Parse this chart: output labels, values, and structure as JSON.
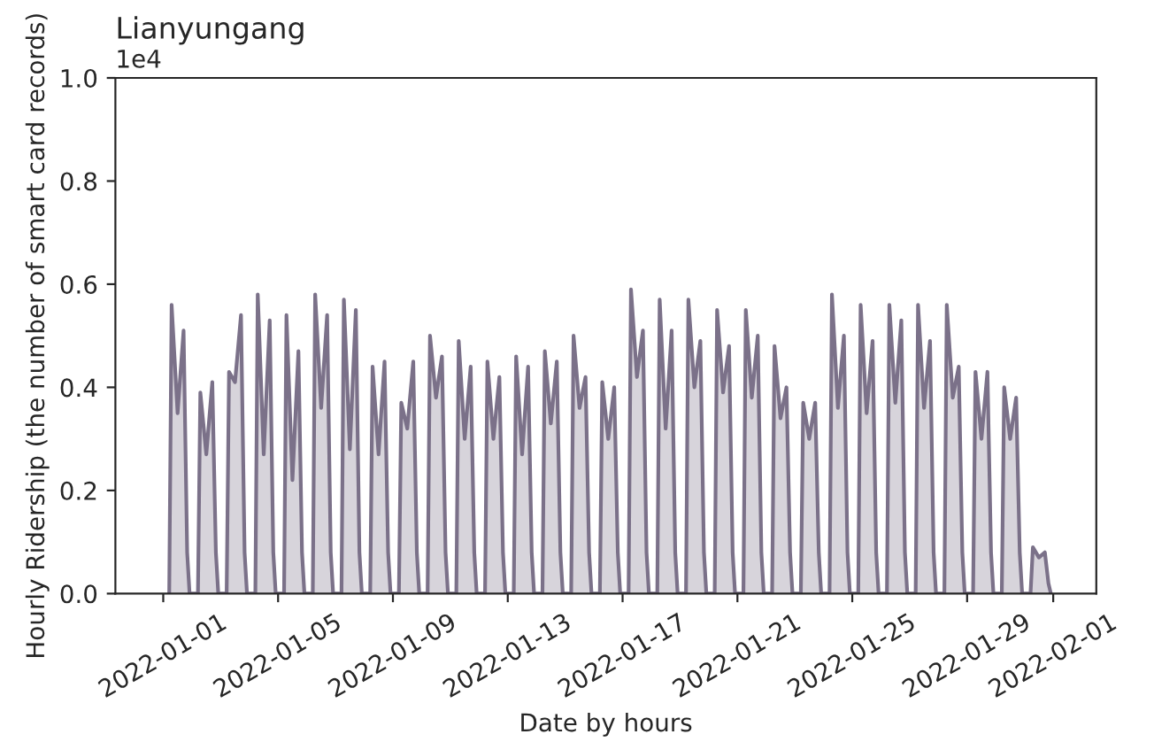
{
  "chart_data": {
    "type": "area",
    "title": "Lianyungang",
    "xlabel": "Date by hours",
    "ylabel": "Hourly Ridership (the number of smart card records)",
    "annotations": [
      "1e4"
    ],
    "xlim": [
      "2021-12-30T08:00",
      "2022-02-02T12:00"
    ],
    "xticks": [
      "2022-01-01",
      "2022-01-05",
      "2022-01-09",
      "2022-01-13",
      "2022-01-17",
      "2022-01-21",
      "2022-01-25",
      "2022-01-29",
      "2022-02-01"
    ],
    "ylim": [
      0,
      1.0
    ],
    "yticks": [
      {
        "value": 0,
        "label": "0.0"
      },
      0.2,
      0.4,
      0.6,
      0.8,
      {
        "value": 1.0,
        "label": "1.0"
      }
    ],
    "grid": false,
    "legend": false,
    "series": [
      {
        "color": "#7b7189",
        "x": [
          "2022-01-01T05:00",
          "2022-01-01T07:00",
          "2022-01-01T12:00",
          "2022-01-01T17:00",
          "2022-01-01T20:00",
          "2022-01-01T22:00",
          "2022-01-02T05:00",
          "2022-01-02T07:00",
          "2022-01-02T12:00",
          "2022-01-02T17:00",
          "2022-01-02T20:00",
          "2022-01-02T22:00",
          "2022-01-03T05:00",
          "2022-01-03T07:00",
          "2022-01-03T12:00",
          "2022-01-03T17:00",
          "2022-01-03T20:00",
          "2022-01-03T22:00",
          "2022-01-04T05:00",
          "2022-01-04T07:00",
          "2022-01-04T12:00",
          "2022-01-04T17:00",
          "2022-01-04T20:00",
          "2022-01-04T22:00",
          "2022-01-05T05:00",
          "2022-01-05T07:00",
          "2022-01-05T12:00",
          "2022-01-05T17:00",
          "2022-01-05T20:00",
          "2022-01-05T22:00",
          "2022-01-06T05:00",
          "2022-01-06T07:00",
          "2022-01-06T12:00",
          "2022-01-06T17:00",
          "2022-01-06T20:00",
          "2022-01-06T22:00",
          "2022-01-07T05:00",
          "2022-01-07T07:00",
          "2022-01-07T12:00",
          "2022-01-07T17:00",
          "2022-01-07T20:00",
          "2022-01-07T22:00",
          "2022-01-08T05:00",
          "2022-01-08T07:00",
          "2022-01-08T12:00",
          "2022-01-08T17:00",
          "2022-01-08T20:00",
          "2022-01-08T22:00",
          "2022-01-09T05:00",
          "2022-01-09T07:00",
          "2022-01-09T12:00",
          "2022-01-09T17:00",
          "2022-01-09T20:00",
          "2022-01-09T22:00",
          "2022-01-10T05:00",
          "2022-01-10T07:00",
          "2022-01-10T12:00",
          "2022-01-10T17:00",
          "2022-01-10T20:00",
          "2022-01-10T22:00",
          "2022-01-11T05:00",
          "2022-01-11T07:00",
          "2022-01-11T12:00",
          "2022-01-11T17:00",
          "2022-01-11T20:00",
          "2022-01-11T22:00",
          "2022-01-12T05:00",
          "2022-01-12T07:00",
          "2022-01-12T12:00",
          "2022-01-12T17:00",
          "2022-01-12T20:00",
          "2022-01-12T22:00",
          "2022-01-13T05:00",
          "2022-01-13T07:00",
          "2022-01-13T12:00",
          "2022-01-13T17:00",
          "2022-01-13T20:00",
          "2022-01-13T22:00",
          "2022-01-14T05:00",
          "2022-01-14T07:00",
          "2022-01-14T12:00",
          "2022-01-14T17:00",
          "2022-01-14T20:00",
          "2022-01-14T22:00",
          "2022-01-15T05:00",
          "2022-01-15T07:00",
          "2022-01-15T12:00",
          "2022-01-15T17:00",
          "2022-01-15T20:00",
          "2022-01-15T22:00",
          "2022-01-16T05:00",
          "2022-01-16T07:00",
          "2022-01-16T12:00",
          "2022-01-16T17:00",
          "2022-01-16T20:00",
          "2022-01-16T22:00",
          "2022-01-17T05:00",
          "2022-01-17T07:00",
          "2022-01-17T12:00",
          "2022-01-17T17:00",
          "2022-01-17T20:00",
          "2022-01-17T22:00",
          "2022-01-18T05:00",
          "2022-01-18T07:00",
          "2022-01-18T12:00",
          "2022-01-18T17:00",
          "2022-01-18T20:00",
          "2022-01-18T22:00",
          "2022-01-19T05:00",
          "2022-01-19T07:00",
          "2022-01-19T12:00",
          "2022-01-19T17:00",
          "2022-01-19T20:00",
          "2022-01-19T22:00",
          "2022-01-20T05:00",
          "2022-01-20T07:00",
          "2022-01-20T12:00",
          "2022-01-20T17:00",
          "2022-01-20T20:00",
          "2022-01-20T22:00",
          "2022-01-21T05:00",
          "2022-01-21T07:00",
          "2022-01-21T12:00",
          "2022-01-21T17:00",
          "2022-01-21T20:00",
          "2022-01-21T22:00",
          "2022-01-22T05:00",
          "2022-01-22T07:00",
          "2022-01-22T12:00",
          "2022-01-22T17:00",
          "2022-01-22T20:00",
          "2022-01-22T22:00",
          "2022-01-23T05:00",
          "2022-01-23T07:00",
          "2022-01-23T12:00",
          "2022-01-23T17:00",
          "2022-01-23T20:00",
          "2022-01-23T22:00",
          "2022-01-24T05:00",
          "2022-01-24T07:00",
          "2022-01-24T12:00",
          "2022-01-24T17:00",
          "2022-01-24T20:00",
          "2022-01-24T22:00",
          "2022-01-25T05:00",
          "2022-01-25T07:00",
          "2022-01-25T12:00",
          "2022-01-25T17:00",
          "2022-01-25T20:00",
          "2022-01-25T22:00",
          "2022-01-26T05:00",
          "2022-01-26T07:00",
          "2022-01-26T12:00",
          "2022-01-26T17:00",
          "2022-01-26T20:00",
          "2022-01-26T22:00",
          "2022-01-27T05:00",
          "2022-01-27T07:00",
          "2022-01-27T12:00",
          "2022-01-27T17:00",
          "2022-01-27T20:00",
          "2022-01-27T22:00",
          "2022-01-28T05:00",
          "2022-01-28T07:00",
          "2022-01-28T12:00",
          "2022-01-28T17:00",
          "2022-01-28T20:00",
          "2022-01-28T22:00",
          "2022-01-29T05:00",
          "2022-01-29T07:00",
          "2022-01-29T12:00",
          "2022-01-29T17:00",
          "2022-01-29T20:00",
          "2022-01-29T22:00",
          "2022-01-30T05:00",
          "2022-01-30T07:00",
          "2022-01-30T12:00",
          "2022-01-30T17:00",
          "2022-01-30T20:00",
          "2022-01-30T22:00",
          "2022-01-31T05:00",
          "2022-01-31T07:00",
          "2022-01-31T12:00",
          "2022-01-31T17:00",
          "2022-01-31T20:00",
          "2022-01-31T22:00"
        ],
        "values": [
          0,
          0.56,
          0.35,
          0.51,
          0.08,
          0,
          0,
          0.39,
          0.27,
          0.41,
          0.08,
          0,
          0,
          0.43,
          0.41,
          0.54,
          0.08,
          0,
          0,
          0.58,
          0.27,
          0.53,
          0.08,
          0,
          0,
          0.54,
          0.22,
          0.47,
          0.08,
          0,
          0,
          0.58,
          0.36,
          0.54,
          0.08,
          0,
          0,
          0.57,
          0.28,
          0.55,
          0.08,
          0,
          0,
          0.44,
          0.27,
          0.45,
          0.08,
          0,
          0,
          0.37,
          0.32,
          0.45,
          0.08,
          0,
          0,
          0.5,
          0.38,
          0.46,
          0.08,
          0,
          0,
          0.49,
          0.3,
          0.44,
          0.08,
          0,
          0,
          0.45,
          0.3,
          0.42,
          0.08,
          0,
          0,
          0.46,
          0.27,
          0.44,
          0.08,
          0,
          0,
          0.47,
          0.33,
          0.45,
          0.08,
          0,
          0,
          0.5,
          0.36,
          0.42,
          0.08,
          0,
          0,
          0.41,
          0.3,
          0.4,
          0.08,
          0,
          0,
          0.59,
          0.42,
          0.51,
          0.08,
          0,
          0,
          0.57,
          0.32,
          0.51,
          0.08,
          0,
          0,
          0.57,
          0.4,
          0.49,
          0.08,
          0,
          0,
          0.55,
          0.39,
          0.48,
          0.08,
          0,
          0,
          0.55,
          0.38,
          0.5,
          0.08,
          0,
          0,
          0.48,
          0.34,
          0.4,
          0.08,
          0,
          0,
          0.37,
          0.3,
          0.37,
          0.08,
          0,
          0,
          0.58,
          0.36,
          0.5,
          0.08,
          0,
          0,
          0.56,
          0.35,
          0.49,
          0.08,
          0,
          0,
          0.56,
          0.37,
          0.53,
          0.08,
          0,
          0,
          0.56,
          0.36,
          0.49,
          0.08,
          0,
          0,
          0.56,
          0.38,
          0.44,
          0.08,
          0,
          0,
          0.43,
          0.3,
          0.43,
          0.08,
          0,
          0,
          0.4,
          0.3,
          0.38,
          0.08,
          0,
          0,
          0.09,
          0.07,
          0.08,
          0.02,
          0
        ]
      }
    ]
  }
}
